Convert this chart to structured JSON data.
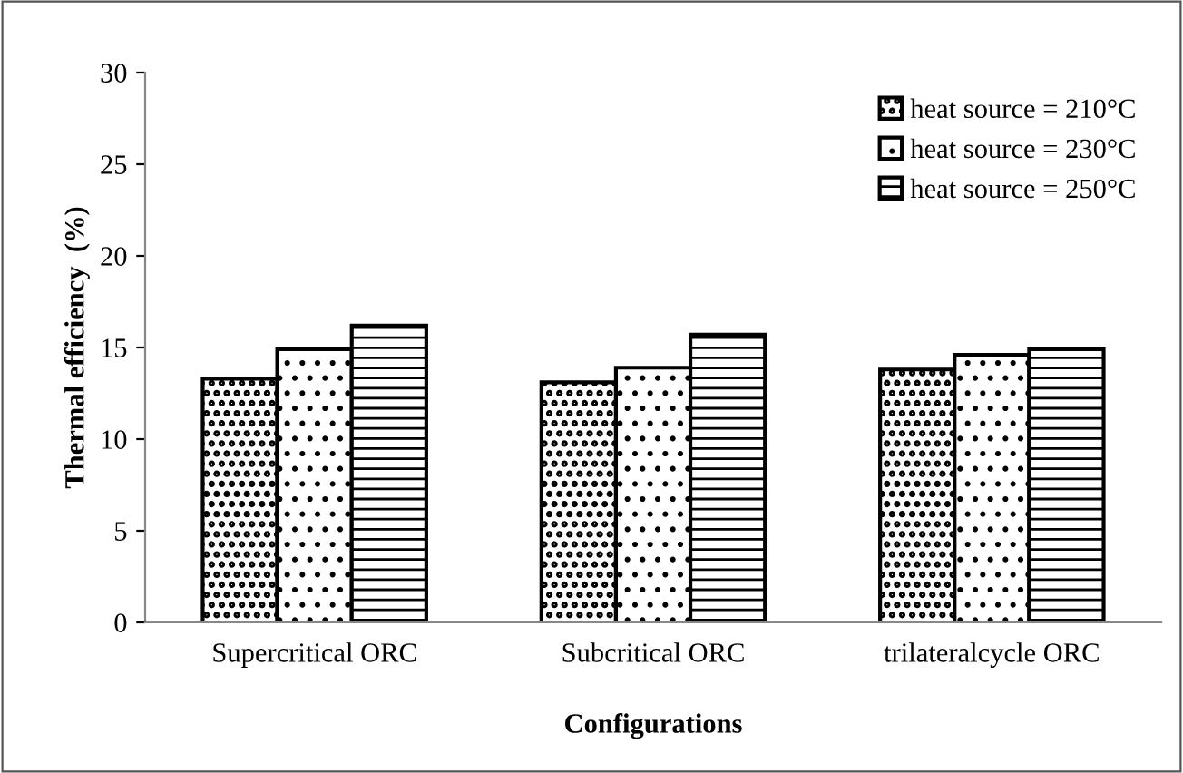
{
  "chart_data": {
    "type": "bar",
    "xlabel": "Configurations",
    "ylabel": "Thermal efficiency  (%)",
    "categories": [
      "Supercritical ORC",
      "Subcritical ORC",
      "trilateralcycle ORC"
    ],
    "series": [
      {
        "name": "heat source = 210°C",
        "color": "#000000",
        "values": [
          13.3,
          13.1,
          13.8
        ]
      },
      {
        "name": "heat source = 230°C",
        "color": "#000000",
        "values": [
          14.9,
          13.9,
          14.6
        ]
      },
      {
        "name": "heat source = 250°C",
        "color": "#000000",
        "values": [
          16.2,
          15.7,
          14.9
        ]
      }
    ],
    "ylim": [
      0,
      30
    ],
    "yticks": [
      0,
      5,
      10,
      15,
      20,
      25,
      30
    ],
    "grid": false,
    "legend": "top right"
  }
}
